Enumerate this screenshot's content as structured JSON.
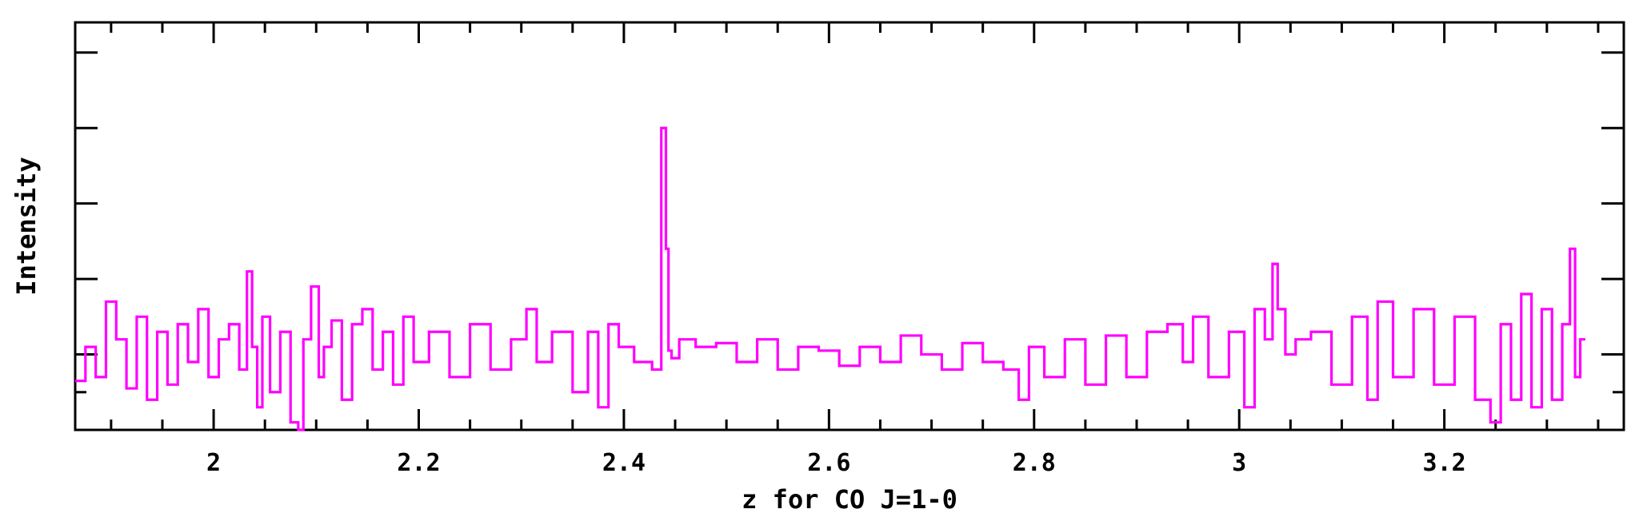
{
  "chart_data": {
    "type": "line",
    "title": "",
    "xlabel": "z for CO J=1-0",
    "ylabel": "Intensity",
    "xlim": [
      1.865,
      3.375
    ],
    "ylim": [
      -1.0,
      4.4
    ],
    "x_ticks": [
      2.0,
      2.2,
      2.4,
      2.6,
      2.8,
      3.0,
      3.2
    ],
    "x_tick_labels": [
      "2",
      "2.2",
      "2.4",
      "2.6",
      "2.8",
      "3",
      "3.2"
    ],
    "y_ticks": [
      -0.5,
      0.0,
      1.0,
      2.0,
      3.0,
      4.0
    ],
    "y_tick_labels_shown": false,
    "grid": false,
    "legend": "none",
    "line_color": "#ff00ff",
    "drawstyle": "steps-mid",
    "series": [
      {
        "x": [
          1.87,
          1.88,
          1.89,
          1.9,
          1.91,
          1.92,
          1.93,
          1.94,
          1.95,
          1.96,
          1.97,
          1.98,
          1.99,
          2.0,
          2.01,
          2.02,
          2.03,
          2.035,
          2.04,
          2.045,
          2.05,
          2.06,
          2.07,
          2.08,
          2.085,
          2.09,
          2.1,
          2.105,
          2.11,
          2.12,
          2.13,
          2.14,
          2.15,
          2.16,
          2.17,
          2.18,
          2.19,
          2.2,
          2.22,
          2.24,
          2.26,
          2.28,
          2.3,
          2.31,
          2.32,
          2.34,
          2.36,
          2.37,
          2.38,
          2.39,
          2.4,
          2.42,
          2.435,
          2.438,
          2.44,
          2.442,
          2.445,
          2.448,
          2.46,
          2.48,
          2.5,
          2.52,
          2.54,
          2.56,
          2.58,
          2.6,
          2.62,
          2.64,
          2.66,
          2.68,
          2.7,
          2.72,
          2.74,
          2.76,
          2.78,
          2.79,
          2.8,
          2.82,
          2.84,
          2.86,
          2.88,
          2.9,
          2.92,
          2.94,
          2.95,
          2.96,
          2.98,
          3.0,
          3.01,
          3.02,
          3.03,
          3.035,
          3.04,
          3.05,
          3.06,
          3.08,
          3.1,
          3.12,
          3.13,
          3.14,
          3.16,
          3.18,
          3.2,
          3.22,
          3.24,
          3.25,
          3.26,
          3.27,
          3.28,
          3.29,
          3.3,
          3.31,
          3.32,
          3.325,
          3.33,
          3.335
        ],
        "y": [
          -0.35,
          0.1,
          -0.3,
          0.7,
          0.2,
          -0.45,
          0.5,
          -0.6,
          0.3,
          -0.4,
          0.4,
          -0.1,
          0.6,
          -0.3,
          0.2,
          0.4,
          -0.2,
          1.1,
          0.1,
          -0.7,
          0.5,
          -0.5,
          0.3,
          -0.9,
          -1.0,
          0.2,
          0.9,
          -0.3,
          0.1,
          0.45,
          -0.6,
          0.4,
          0.6,
          -0.2,
          0.3,
          -0.4,
          0.5,
          -0.1,
          0.3,
          -0.3,
          0.4,
          -0.2,
          0.2,
          0.6,
          -0.1,
          0.3,
          -0.5,
          0.3,
          -0.7,
          0.4,
          0.1,
          -0.1,
          -0.2,
          3.0,
          3.0,
          1.4,
          0.05,
          -0.05,
          0.2,
          0.1,
          0.15,
          -0.1,
          0.2,
          -0.2,
          0.1,
          0.05,
          -0.15,
          0.1,
          -0.1,
          0.25,
          0.0,
          -0.2,
          0.15,
          -0.1,
          -0.2,
          -0.6,
          0.1,
          -0.3,
          0.2,
          -0.4,
          0.25,
          -0.3,
          0.3,
          0.4,
          -0.1,
          0.5,
          -0.3,
          0.3,
          -0.7,
          0.6,
          0.2,
          1.2,
          0.6,
          0.0,
          0.2,
          0.3,
          -0.4,
          0.5,
          -0.6,
          0.7,
          -0.3,
          0.6,
          -0.4,
          0.5,
          -0.6,
          -0.9,
          0.4,
          -0.6,
          0.8,
          -0.7,
          0.6,
          -0.6,
          0.4,
          1.4,
          -0.3,
          0.2
        ]
      }
    ]
  }
}
